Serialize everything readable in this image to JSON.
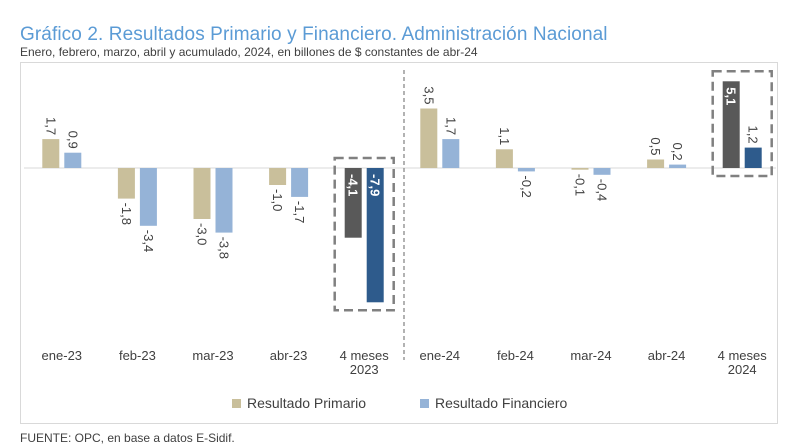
{
  "title": "Gráfico 2. Resultados Primario y Financiero. Administración Nacional",
  "subtitle": "Enero, febrero, marzo, abril y acumulado, 2024, en billones de $ constantes de abr-24",
  "source": "FUENTE: OPC, en base a datos E-Sidif.",
  "colors": {
    "primario": "#c9bf9b",
    "financiero": "#95b3d7",
    "primario_total": "#595959",
    "financiero_total": "#2e5b8c",
    "label": "#404040",
    "highlight_box": "#808080",
    "divider": "#808080",
    "axis": "#d9d9d9"
  },
  "legend": {
    "primario": "Resultado Primario",
    "financiero": "Resultado Financiero"
  },
  "chart_data": {
    "type": "bar",
    "categories": [
      "ene-23",
      "feb-23",
      "mar-23",
      "abr-23",
      "4 meses 2023",
      "ene-24",
      "feb-24",
      "mar-24",
      "abr-24",
      "4 meses 2024"
    ],
    "category_lines": [
      [
        "ene-23"
      ],
      [
        "feb-23"
      ],
      [
        "mar-23"
      ],
      [
        "abr-23"
      ],
      [
        "4 meses",
        "2023"
      ],
      [
        "ene-24"
      ],
      [
        "feb-24"
      ],
      [
        "mar-24"
      ],
      [
        "abr-24"
      ],
      [
        "4 meses",
        "2024"
      ]
    ],
    "series": [
      {
        "name": "Resultado Primario",
        "values": [
          1.7,
          -1.8,
          -3.0,
          -1.0,
          -4.1,
          3.5,
          1.1,
          -0.1,
          0.5,
          5.1
        ],
        "labels": [
          "1,7",
          "-1,8",
          "-3,0",
          "-1,0",
          "-4,1",
          "3,5",
          "1,1",
          "-0,1",
          "0,5",
          "5,1"
        ]
      },
      {
        "name": "Resultado Financiero",
        "values": [
          0.9,
          -3.4,
          -3.8,
          -1.7,
          -7.9,
          1.7,
          -0.2,
          -0.4,
          0.2,
          1.2
        ],
        "labels": [
          "0,9",
          "-3,4",
          "-3,8",
          "-1,7",
          "-7,9",
          "1,7",
          "-0,2",
          "-0,4",
          "0,2",
          "1,2"
        ]
      }
    ],
    "highlighted_categories": [
      "4 meses 2023",
      "4 meses 2024"
    ],
    "divider_between": [
      "4 meses 2023",
      "ene-24"
    ]
  }
}
